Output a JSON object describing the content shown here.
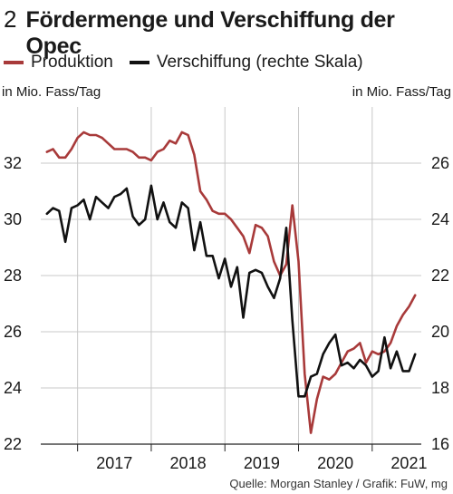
{
  "header": {
    "figure_number": "2",
    "title": "Fördermenge und Verschiffung der Opec"
  },
  "footer": {
    "source": "Quelle: Morgan Stanley / Grafik: FuW, mg"
  },
  "colors": {
    "produktion": "#a83a3a",
    "verschiffung": "#111111",
    "grid": "#c8c8c8",
    "axis": "#222222"
  },
  "chart_data": {
    "type": "line",
    "title": "Fördermenge und Verschiffung der Opec",
    "legend_position": "top-left",
    "grid": true,
    "y_left": {
      "label": "in Mio. Fass/Tag",
      "ylim": [
        22,
        34
      ],
      "ticks": [
        22,
        24,
        26,
        28,
        30,
        32
      ]
    },
    "y_right": {
      "label": "in Mio. Fass/Tag",
      "ylim": [
        16,
        28
      ],
      "ticks": [
        16,
        18,
        20,
        22,
        24,
        26
      ]
    },
    "x_axis": {
      "labels": [
        "2017",
        "2018",
        "2019",
        "2020",
        "2021"
      ],
      "start": "2016-07",
      "end": "2021-09"
    },
    "series": [
      {
        "name": "Produktion",
        "axis": "left",
        "x": [
          "2016-08",
          "2016-09",
          "2016-10",
          "2016-11",
          "2016-12",
          "2017-01",
          "2017-02",
          "2017-03",
          "2017-04",
          "2017-05",
          "2017-06",
          "2017-07",
          "2017-08",
          "2017-09",
          "2017-10",
          "2017-11",
          "2017-12",
          "2018-01",
          "2018-02",
          "2018-03",
          "2018-04",
          "2018-05",
          "2018-06",
          "2018-07",
          "2018-08",
          "2018-09",
          "2018-10",
          "2018-11",
          "2018-12",
          "2019-01",
          "2019-02",
          "2019-03",
          "2019-04",
          "2019-05",
          "2019-06",
          "2019-07",
          "2019-08",
          "2019-09",
          "2019-10",
          "2019-11",
          "2019-12",
          "2020-01",
          "2020-02",
          "2020-03",
          "2020-04",
          "2020-05",
          "2020-06",
          "2020-07",
          "2020-08",
          "2020-09",
          "2020-10",
          "2020-11",
          "2020-12",
          "2021-01",
          "2021-02",
          "2021-03",
          "2021-04",
          "2021-05",
          "2021-06",
          "2021-07",
          "2021-08"
        ],
        "values": [
          32.4,
          32.5,
          32.2,
          32.2,
          32.5,
          32.9,
          33.1,
          33.0,
          33.0,
          32.9,
          32.7,
          32.5,
          32.5,
          32.5,
          32.4,
          32.2,
          32.2,
          32.1,
          32.4,
          32.5,
          32.8,
          32.7,
          33.1,
          33.0,
          32.3,
          31.0,
          30.7,
          30.3,
          30.2,
          30.2,
          30.0,
          29.7,
          29.4,
          28.8,
          29.8,
          29.7,
          29.4,
          28.5,
          28.0,
          28.4,
          30.5,
          28.5,
          24.5,
          22.4,
          23.6,
          24.4,
          24.3,
          24.5,
          24.9,
          25.3,
          25.4,
          25.6,
          24.9,
          25.3,
          25.2,
          25.3,
          25.6,
          26.2,
          26.6,
          26.9,
          27.3
        ]
      },
      {
        "name": "Verschiffung (rechte Skala)",
        "axis": "right",
        "x": [
          "2016-08",
          "2016-09",
          "2016-10",
          "2016-11",
          "2016-12",
          "2017-01",
          "2017-02",
          "2017-03",
          "2017-04",
          "2017-05",
          "2017-06",
          "2017-07",
          "2017-08",
          "2017-09",
          "2017-10",
          "2017-11",
          "2017-12",
          "2018-01",
          "2018-02",
          "2018-03",
          "2018-04",
          "2018-05",
          "2018-06",
          "2018-07",
          "2018-08",
          "2018-09",
          "2018-10",
          "2018-11",
          "2018-12",
          "2019-01",
          "2019-02",
          "2019-03",
          "2019-04",
          "2019-05",
          "2019-06",
          "2019-07",
          "2019-08",
          "2019-09",
          "2019-10",
          "2019-11",
          "2019-12",
          "2020-01",
          "2020-02",
          "2020-03",
          "2020-04",
          "2020-05",
          "2020-06",
          "2020-07",
          "2020-08",
          "2020-09",
          "2020-10",
          "2020-11",
          "2020-12",
          "2021-01",
          "2021-02",
          "2021-03",
          "2021-04",
          "2021-05",
          "2021-06",
          "2021-07",
          "2021-08"
        ],
        "values": [
          24.2,
          24.4,
          24.3,
          23.2,
          24.4,
          24.5,
          24.7,
          24.0,
          24.8,
          24.6,
          24.4,
          24.8,
          24.9,
          25.1,
          24.1,
          23.8,
          24.0,
          25.2,
          24.0,
          24.6,
          23.9,
          23.7,
          24.6,
          24.4,
          22.9,
          23.9,
          22.7,
          22.7,
          21.9,
          22.6,
          21.6,
          22.3,
          20.5,
          22.1,
          22.2,
          22.1,
          21.6,
          21.2,
          21.9,
          23.7,
          20.4,
          17.7,
          17.7,
          18.4,
          18.5,
          19.2,
          19.6,
          19.9,
          18.8,
          18.9,
          18.7,
          19.0,
          18.8,
          18.4,
          18.6,
          19.8,
          18.7,
          19.3,
          18.6,
          18.6,
          19.2
        ]
      }
    ]
  }
}
